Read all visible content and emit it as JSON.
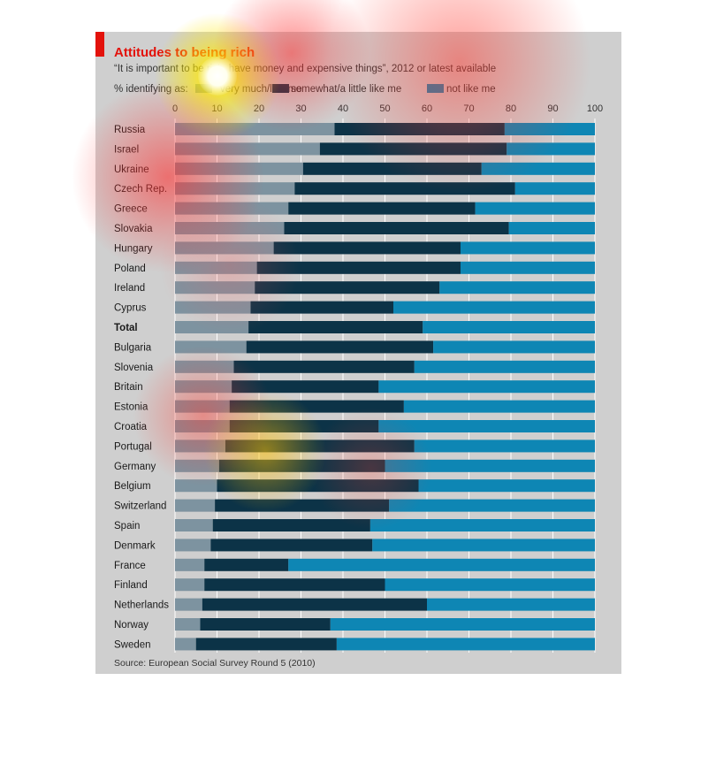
{
  "chart_data": {
    "type": "bar",
    "stacked": true,
    "orientation": "horizontal",
    "title": "Attitudes to being rich",
    "subtitle": "“It is important to be rich, have money and expensive things”, 2012 or latest available",
    "legend_prefix": "% identifying as:",
    "legend": [
      {
        "name": "very much/like me",
        "color": "#7d93a0"
      },
      {
        "name": "somewhat/a little like me",
        "color": "#0c3347"
      },
      {
        "name": "not like me",
        "color": "#0e86b4"
      }
    ],
    "legend_placement": "top",
    "source": "Source: European Social Survey Round 5 (2010)",
    "xlim": [
      0,
      100
    ],
    "xticks": [
      "0",
      "10",
      "20",
      "30",
      "40",
      "50",
      "60",
      "70",
      "80",
      "90",
      "100"
    ],
    "grid": true,
    "categories": [
      "Russia",
      "Israel",
      "Ukraine",
      "Czech Rep.",
      "Greece",
      "Slovakia",
      "Hungary",
      "Poland",
      "Ireland",
      "Cyprus",
      "Total",
      "Bulgaria",
      "Slovenia",
      "Britain",
      "Estonia",
      "Croatia",
      "Portugal",
      "Germany",
      "Belgium",
      "Switzerland",
      "Spain",
      "Denmark",
      "France",
      "Finland",
      "Netherlands",
      "Norway",
      "Sweden"
    ],
    "bold_categories": [
      "Total"
    ],
    "series": [
      {
        "name": "very much/like me",
        "values": [
          38,
          34.5,
          30.5,
          28.5,
          27,
          26,
          23.5,
          19.5,
          19,
          18,
          17.5,
          17,
          14,
          13.5,
          13,
          13,
          12,
          10.5,
          10,
          9.5,
          9,
          8.5,
          7,
          7,
          6.5,
          6,
          5
        ]
      },
      {
        "name": "somewhat/a little like me",
        "values": [
          40.5,
          44.5,
          42.5,
          52.5,
          44.5,
          53.5,
          44.5,
          48.5,
          44,
          34,
          41.5,
          44.5,
          43,
          35,
          41.5,
          35.5,
          45,
          39.5,
          48,
          41.5,
          37.5,
          38.5,
          20,
          43,
          53.5,
          31,
          33.5
        ]
      },
      {
        "name": "not like me",
        "values": [
          21.5,
          21,
          27,
          19,
          28.5,
          20.5,
          32,
          32,
          37,
          48,
          41,
          38.5,
          43,
          51.5,
          45.5,
          51.5,
          43,
          50,
          42,
          49,
          53.5,
          53,
          73,
          50,
          40,
          63,
          61.5
        ]
      }
    ]
  },
  "heatmap": [
    {
      "x": 246,
      "y": 86,
      "r": 72,
      "color": "#ffe800",
      "strength": 1.0
    },
    {
      "x": 330,
      "y": 60,
      "r": 90,
      "color": "#ff3030",
      "strength": 0.55
    },
    {
      "x": 520,
      "y": 70,
      "r": 150,
      "color": "#ff3a30",
      "strength": 0.5
    },
    {
      "x": 190,
      "y": 200,
      "r": 110,
      "color": "#ff3030",
      "strength": 0.6
    },
    {
      "x": 260,
      "y": 300,
      "r": 80,
      "color": "#ff5050",
      "strength": 0.25
    },
    {
      "x": 230,
      "y": 470,
      "r": 80,
      "color": "#ff3a30",
      "strength": 0.45
    },
    {
      "x": 300,
      "y": 510,
      "r": 70,
      "color": "#ffc000",
      "strength": 0.55
    },
    {
      "x": 420,
      "y": 530,
      "r": 70,
      "color": "#ff4030",
      "strength": 0.25
    }
  ]
}
